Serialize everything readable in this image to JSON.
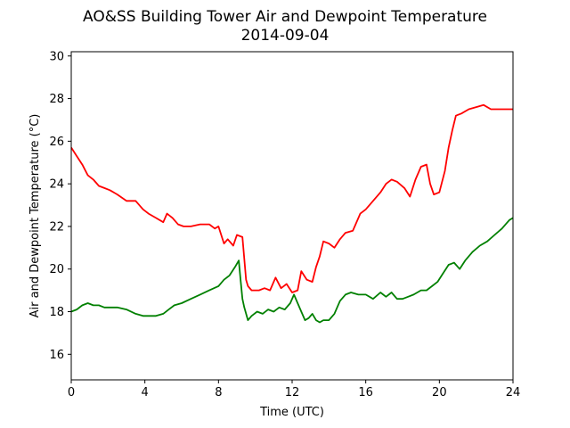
{
  "chart_data": {
    "type": "line",
    "title": "AO&SS Building Tower Air and Dewpoint Temperature",
    "subtitle": "2014-09-04",
    "xlabel": "Time (UTC)",
    "ylabel": "Air and Dewpoint Temperature (°C)",
    "xlim": [
      0,
      24
    ],
    "ylim": [
      14.8,
      30.2
    ],
    "xticks": [
      0,
      4,
      8,
      12,
      16,
      20,
      24
    ],
    "yticks": [
      16,
      18,
      20,
      22,
      24,
      26,
      28,
      30
    ],
    "grid": false,
    "legend": "none",
    "series": [
      {
        "color": "#ff0000",
        "x": [
          0,
          0.3,
          0.6,
          0.9,
          1.2,
          1.5,
          1.8,
          2.1,
          2.5,
          3.0,
          3.5,
          3.9,
          4.2,
          4.6,
          5.0,
          5.2,
          5.5,
          5.8,
          6.1,
          6.5,
          7.0,
          7.5,
          7.8,
          8.0,
          8.3,
          8.5,
          8.8,
          9.0,
          9.3,
          9.5,
          9.6,
          9.8,
          10.2,
          10.5,
          10.8,
          11.1,
          11.4,
          11.7,
          12.0,
          12.3,
          12.5,
          12.8,
          13.1,
          13.3,
          13.5,
          13.7,
          14.0,
          14.3,
          14.6,
          14.9,
          15.3,
          15.7,
          16.0,
          16.4,
          16.8,
          17.1,
          17.4,
          17.7,
          18.1,
          18.4,
          18.7,
          19.0,
          19.3,
          19.5,
          19.7,
          20.0,
          20.3,
          20.5,
          20.7,
          20.9,
          21.2,
          21.6,
          22.0,
          22.4,
          22.8,
          23.2,
          23.6,
          24.0
        ],
        "y": [
          25.7,
          25.3,
          24.9,
          24.4,
          24.2,
          23.9,
          23.8,
          23.7,
          23.5,
          23.2,
          23.2,
          22.8,
          22.6,
          22.4,
          22.2,
          22.6,
          22.4,
          22.1,
          22.0,
          22.0,
          22.1,
          22.1,
          21.9,
          22.0,
          21.2,
          21.4,
          21.1,
          21.6,
          21.5,
          19.5,
          19.2,
          19.0,
          19.0,
          19.1,
          19.0,
          19.6,
          19.1,
          19.3,
          18.9,
          19.0,
          19.9,
          19.5,
          19.4,
          20.1,
          20.6,
          21.3,
          21.2,
          21.0,
          21.4,
          21.7,
          21.8,
          22.6,
          22.8,
          23.2,
          23.6,
          24.0,
          24.2,
          24.1,
          23.8,
          23.4,
          24.2,
          24.8,
          24.9,
          24.0,
          23.5,
          23.6,
          24.6,
          25.7,
          26.5,
          27.2,
          27.3,
          27.5,
          27.6,
          27.7,
          27.5,
          27.5,
          27.5,
          27.5
        ]
      },
      {
        "color": "#008000",
        "x": [
          0,
          0.3,
          0.6,
          0.9,
          1.2,
          1.5,
          1.8,
          2.1,
          2.5,
          3.0,
          3.5,
          3.9,
          4.2,
          4.6,
          5.0,
          5.3,
          5.6,
          6.0,
          6.5,
          7.0,
          7.5,
          8.0,
          8.3,
          8.6,
          8.9,
          9.1,
          9.2,
          9.3,
          9.4,
          9.6,
          9.8,
          10.1,
          10.4,
          10.7,
          11.0,
          11.3,
          11.6,
          11.9,
          12.1,
          12.3,
          12.5,
          12.7,
          12.9,
          13.1,
          13.3,
          13.5,
          13.7,
          14.0,
          14.3,
          14.6,
          14.9,
          15.2,
          15.6,
          16.0,
          16.4,
          16.8,
          17.1,
          17.4,
          17.7,
          18.0,
          18.3,
          18.6,
          19.0,
          19.3,
          19.6,
          19.9,
          20.2,
          20.5,
          20.8,
          21.1,
          21.4,
          21.8,
          22.2,
          22.6,
          23.0,
          23.4,
          23.8,
          24.0
        ],
        "y": [
          18.0,
          18.1,
          18.3,
          18.4,
          18.3,
          18.3,
          18.2,
          18.2,
          18.2,
          18.1,
          17.9,
          17.8,
          17.8,
          17.8,
          17.9,
          18.1,
          18.3,
          18.4,
          18.6,
          18.8,
          19.0,
          19.2,
          19.5,
          19.7,
          20.1,
          20.4,
          19.5,
          18.6,
          18.2,
          17.6,
          17.8,
          18.0,
          17.9,
          18.1,
          18.0,
          18.2,
          18.1,
          18.4,
          18.8,
          18.4,
          18.0,
          17.6,
          17.7,
          17.9,
          17.6,
          17.5,
          17.6,
          17.6,
          17.9,
          18.5,
          18.8,
          18.9,
          18.8,
          18.8,
          18.6,
          18.9,
          18.7,
          18.9,
          18.6,
          18.6,
          18.7,
          18.8,
          19.0,
          19.0,
          19.2,
          19.4,
          19.8,
          20.2,
          20.3,
          20.0,
          20.4,
          20.8,
          21.1,
          21.3,
          21.6,
          21.9,
          22.3,
          22.4
        ]
      }
    ]
  }
}
